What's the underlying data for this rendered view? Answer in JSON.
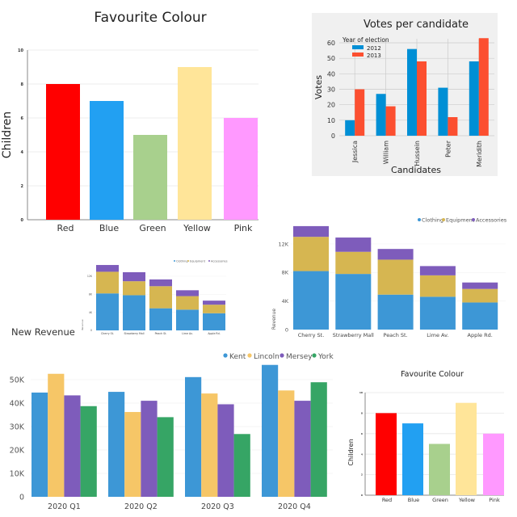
{
  "chart_data": [
    {
      "id": "fav-large",
      "type": "bar",
      "title": "Favourite Colour",
      "xlabel": "",
      "ylabel": "Children",
      "categories": [
        "Red",
        "Blue",
        "Green",
        "Yellow",
        "Pink"
      ],
      "values": [
        8,
        7,
        5,
        9,
        6
      ],
      "colors": [
        "#ff0000",
        "#22a0f2",
        "#a8d08d",
        "#ffe599",
        "#ff99ff"
      ],
      "ylim": [
        0,
        10
      ],
      "yticks": [
        0,
        2,
        4,
        6,
        8,
        10
      ],
      "grid": true,
      "legend": "none"
    },
    {
      "id": "votes",
      "type": "bar",
      "title": "Votes per candidate",
      "xlabel": "Candidates",
      "ylabel": "Votes",
      "categories": [
        "Jessica",
        "William",
        "Hussein",
        "Peter",
        "Meridith"
      ],
      "series": [
        {
          "name": "2012",
          "values": [
            10,
            27,
            56,
            31,
            48
          ],
          "color": "#008fd5"
        },
        {
          "name": "2013",
          "values": [
            30,
            19,
            48,
            12,
            63
          ],
          "color": "#fc4f30"
        }
      ],
      "legend_title": "Year of election",
      "legend": "top-left",
      "ylim": [
        0,
        65
      ],
      "yticks": [
        0,
        10,
        20,
        30,
        40,
        50,
        60
      ],
      "grid": true,
      "background": "#f0f0f0"
    },
    {
      "id": "stacked-small",
      "type": "bar",
      "stacked": true,
      "title": "",
      "xlabel": "",
      "ylabel": "Revenue",
      "categories": [
        "Cherry St.",
        "Strawberry Mall",
        "Peach St.",
        "Lime Av.",
        "Apple Rd."
      ],
      "series": [
        {
          "name": "Clothing",
          "values": [
            8200,
            7800,
            4900,
            4600,
            3800
          ],
          "color": "#3d97d6"
        },
        {
          "name": "Equipment",
          "values": [
            4800,
            3100,
            4900,
            3000,
            1900
          ],
          "color": "#d6b651"
        },
        {
          "name": "Accessories",
          "values": [
            1500,
            2000,
            1500,
            1300,
            900
          ],
          "color": "#7e5cbb"
        }
      ],
      "yticks": [
        0,
        4000,
        8000,
        12000
      ],
      "ytick_labels": [
        "0",
        "4K",
        "8K",
        "12K"
      ],
      "ylim": [
        0,
        15000
      ],
      "legend": "top-right",
      "grid": true
    },
    {
      "id": "stacked-large",
      "type": "bar",
      "stacked": true,
      "title": "",
      "xlabel": "",
      "ylabel": "Revenue",
      "categories": [
        "Cherry St.",
        "Strawberry Mall",
        "Peach St.",
        "Lime Av.",
        "Apple Rd."
      ],
      "series": [
        {
          "name": "Clothing",
          "values": [
            8200,
            7800,
            4900,
            4600,
            3800
          ],
          "color": "#3d97d6"
        },
        {
          "name": "Equipment",
          "values": [
            4800,
            3100,
            4900,
            3000,
            1900
          ],
          "color": "#d6b651"
        },
        {
          "name": "Accessories",
          "values": [
            1500,
            2000,
            1500,
            1300,
            900
          ],
          "color": "#7e5cbb"
        }
      ],
      "yticks": [
        0,
        4000,
        8000,
        12000
      ],
      "ytick_labels": [
        "0",
        "4K",
        "8K",
        "12K"
      ],
      "ylim": [
        0,
        15000
      ],
      "legend": "top-right",
      "grid": true
    },
    {
      "id": "new-revenue",
      "type": "bar",
      "title": "New Revenue",
      "xlabel": "",
      "ylabel": "",
      "categories": [
        "2020 Q1",
        "2020 Q2",
        "2020 Q3",
        "2020 Q4"
      ],
      "series": [
        {
          "name": "Kent",
          "values": [
            44500,
            44800,
            51100,
            56300
          ],
          "color": "#3d97d6"
        },
        {
          "name": "Lincoln",
          "values": [
            52500,
            36200,
            44100,
            45400
          ],
          "color": "#f6c667"
        },
        {
          "name": "Mersey",
          "values": [
            43300,
            41000,
            39500,
            41000
          ],
          "color": "#7e5cbb"
        },
        {
          "name": "York",
          "values": [
            38700,
            34000,
            26800,
            48900
          ],
          "color": "#36a565"
        }
      ],
      "yticks": [
        0,
        10000,
        20000,
        30000,
        40000,
        50000
      ],
      "ytick_labels": [
        "0",
        "10K",
        "20K",
        "30K",
        "40K",
        "50K"
      ],
      "ylim": [
        0,
        57000
      ],
      "legend": "top-right",
      "grid": true
    },
    {
      "id": "fav-small",
      "type": "bar",
      "title": "Favourite Colour",
      "xlabel": "",
      "ylabel": "Children",
      "categories": [
        "Red",
        "Blue",
        "Green",
        "Yellow",
        "Pink"
      ],
      "values": [
        8,
        7,
        5,
        9,
        6
      ],
      "colors": [
        "#ff0000",
        "#22a0f2",
        "#a8d08d",
        "#ffe599",
        "#ff99ff"
      ],
      "ylim": [
        0,
        10
      ],
      "yticks": [
        0,
        2,
        4,
        6,
        8,
        10
      ],
      "grid": true,
      "legend": "none"
    }
  ]
}
